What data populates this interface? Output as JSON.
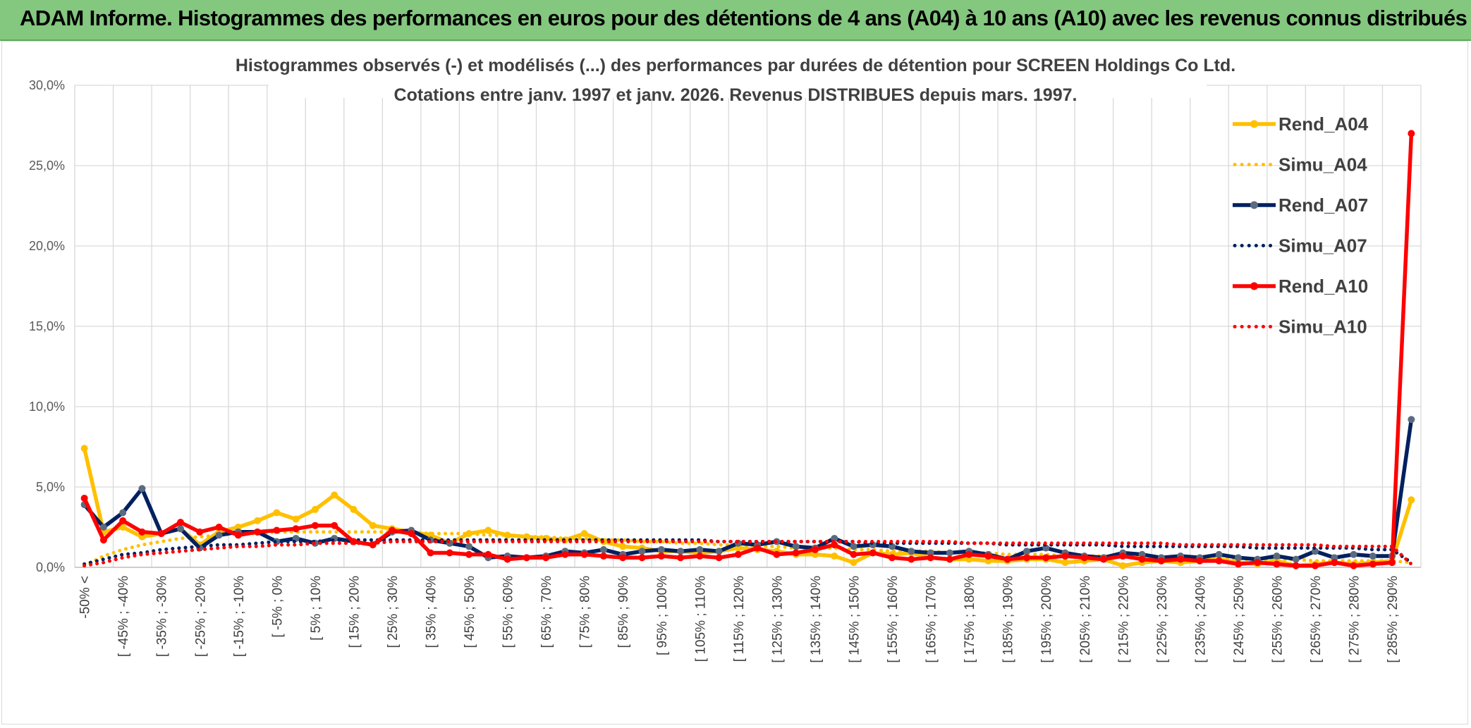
{
  "header": {
    "title": "ADAM Informe. Histogrammes des performances en euros pour des détentions de 4 ans (A04) à 10 ans (A10) avec les revenus connus distribués"
  },
  "chart_data": {
    "type": "line",
    "title": "Histogrammes observés (-) et modélisés (...) des performances par durées de détention pour SCREEN Holdings Co Ltd.",
    "subtitle": "Cotations entre janv. 1997 et janv. 2026.  Revenus DISTRIBUES depuis mars. 1997.",
    "xlabel": "",
    "ylabel": "",
    "ylim": [
      0,
      30
    ],
    "y_ticks": [
      "0,0%",
      "5,0%",
      "10,0%",
      "15,0%",
      "20,0%",
      "25,0%",
      "30,0%"
    ],
    "grid": true,
    "legend_position": "right",
    "categories": [
      "-50% <",
      "[ -50% ; -45%",
      "[ -45% ; -40%",
      "[ -40% ; -35%",
      "[ -35% ; -30%",
      "[ -30% ; -25%",
      "[ -25% ; -20%",
      "[ -20% ; -15%",
      "[ -15% ; -10%",
      "[ -10% ; -5%",
      "[ -5% ; 0%",
      "[ 0% ; 5%",
      "[ 5% ; 10%",
      "[ 10% ; 15%",
      "[ 15% ; 20%",
      "[ 20% ; 25%",
      "[ 25% ; 30%",
      "[ 30% ; 35%",
      "[ 35% ; 40%",
      "[ 40% ; 45%",
      "[ 45% ; 50%",
      "[ 50% ; 55%",
      "[ 55% ; 60%",
      "[ 60% ; 65%",
      "[ 65% ; 70%",
      "[ 70% ; 75%",
      "[ 75% ; 80%",
      "[ 80% ; 85%",
      "[ 85% ; 90%",
      "[ 90% ; 95%",
      "[ 95% ; 100%",
      "[ 100% ; 105%",
      "[ 105% ; 110%",
      "[ 110% ; 115%",
      "[ 115% ; 120%",
      "[ 120% ; 125%",
      "[ 125% ; 130%",
      "[ 130% ; 135%",
      "[ 135% ; 140%",
      "[ 140% ; 145%",
      "[ 145% ; 150%",
      "[ 150% ; 155%",
      "[ 155% ; 160%",
      "[ 160% ; 165%",
      "[ 165% ; 170%",
      "[ 170% ; 175%",
      "[ 175% ; 180%",
      "[ 180% ; 185%",
      "[ 185% ; 190%",
      "[ 190% ; 195%",
      "[ 195% ; 200%",
      "[ 200% ; 205%",
      "[ 205% ; 210%",
      "[ 210% ; 215%",
      "[ 215% ; 220%",
      "[ 220% ; 225%",
      "[ 225% ; 230%",
      "[ 230% ; 235%",
      "[ 235% ; 240%",
      "[ 240% ; 245%",
      "[ 245% ; 250%",
      "[ 250% ; 255%",
      "[ 255% ; 260%",
      "[ 260% ; 265%",
      "[ 265% ; 270%",
      "[ 270% ; 275%",
      "[ 275% ; 280%",
      "[ 280% ; 285%",
      "[ 285% ; 290%",
      "[ 290% ; 295%"
    ],
    "visible_tick_labels": [
      "-50% <",
      "[ -45% ; -40%",
      "[ -35% ; -30%",
      "[ -25% ; -20%",
      "[ -15% ; -10%",
      "[ -5% ; 0%",
      "[ 5% ; 10%",
      "[ 15% ; 20%",
      "[ 25% ; 30%",
      "[ 35% ; 40%",
      "[ 45% ; 50%",
      "[ 55% ; 60%",
      "[ 65% ; 70%",
      "[ 75% ; 80%",
      "[ 85% ; 90%",
      "[ 95% ; 100%",
      "[ 105% ; 110%",
      "[ 115% ; 120%",
      "[ 125% ; 130%",
      "[ 135% ; 140%",
      "[ 145% ; 150%",
      "[ 155% ; 160%",
      "[ 165% ; 170%",
      "[ 175% ; 180%",
      "[ 185% ; 190%",
      "[ 195% ; 200%",
      "[ 205% ; 210%",
      "[ 215% ; 220%",
      "[ 225% ; 230%",
      "[ 235% ; 240%",
      "[ 245% ; 250%",
      "[ 255% ; 260%",
      "[ 265% ; 270%",
      "[ 275% ; 280%",
      "[ 285% ; 290%"
    ],
    "series": [
      {
        "name": "Rend_A04",
        "style": "solid",
        "color": "#FFC000",
        "values": [
          7.4,
          2.2,
          2.5,
          1.9,
          2.1,
          2.4,
          1.4,
          2.2,
          2.5,
          2.9,
          3.4,
          3.0,
          3.6,
          4.5,
          3.6,
          2.6,
          2.4,
          2.2,
          2.0,
          1.5,
          2.1,
          2.3,
          2.0,
          1.9,
          1.8,
          1.7,
          2.1,
          1.6,
          1.3,
          1.2,
          1.0,
          1.0,
          0.9,
          1.0,
          1.2,
          1.1,
          1.0,
          0.8,
          0.8,
          0.7,
          0.3,
          0.9,
          0.8,
          0.9,
          0.6,
          0.5,
          0.5,
          0.4,
          0.4,
          0.5,
          0.5,
          0.3,
          0.4,
          0.5,
          0.1,
          0.3,
          0.4,
          0.3,
          0.4,
          0.5,
          0.3,
          0.2,
          0.4,
          0.1,
          0.2,
          0.3,
          0.2,
          0.3,
          0.4,
          4.2
        ]
      },
      {
        "name": "Simu_A04",
        "style": "dotted",
        "color": "#FFC000",
        "values": [
          0.1,
          0.7,
          1.1,
          1.4,
          1.6,
          1.8,
          1.9,
          2.0,
          2.1,
          2.1,
          2.2,
          2.2,
          2.2,
          2.2,
          2.2,
          2.2,
          2.2,
          2.2,
          2.1,
          2.1,
          2.1,
          2.0,
          2.0,
          1.9,
          1.9,
          1.8,
          1.8,
          1.7,
          1.7,
          1.6,
          1.6,
          1.5,
          1.5,
          1.4,
          1.4,
          1.3,
          1.3,
          1.2,
          1.2,
          1.2,
          1.1,
          1.1,
          1.0,
          1.0,
          1.0,
          0.9,
          0.9,
          0.9,
          0.8,
          0.8,
          0.8,
          0.7,
          0.7,
          0.7,
          0.7,
          0.6,
          0.6,
          0.6,
          0.6,
          0.5,
          0.5,
          0.5,
          0.5,
          0.5,
          0.4,
          0.4,
          0.4,
          0.4,
          0.4,
          0.3
        ]
      },
      {
        "name": "Rend_A07",
        "style": "solid",
        "color": "#002060",
        "values": [
          3.9,
          2.5,
          3.4,
          4.9,
          2.1,
          2.4,
          1.2,
          2.0,
          2.2,
          2.2,
          1.6,
          1.8,
          1.5,
          1.8,
          1.6,
          1.4,
          2.2,
          2.3,
          1.7,
          1.5,
          1.3,
          0.6,
          0.7,
          0.6,
          0.7,
          1.0,
          0.9,
          1.1,
          0.8,
          1.0,
          1.1,
          1.0,
          1.1,
          1.0,
          1.5,
          1.4,
          1.6,
          1.3,
          1.2,
          1.8,
          1.3,
          1.4,
          1.3,
          1.0,
          0.9,
          0.9,
          1.0,
          0.8,
          0.5,
          1.0,
          1.2,
          0.9,
          0.7,
          0.6,
          0.9,
          0.8,
          0.6,
          0.7,
          0.6,
          0.8,
          0.6,
          0.5,
          0.7,
          0.5,
          1.0,
          0.6,
          0.8,
          0.7,
          0.7,
          9.2
        ]
      },
      {
        "name": "Simu_A07",
        "style": "dotted",
        "color": "#002060",
        "values": [
          0.2,
          0.5,
          0.8,
          0.9,
          1.1,
          1.2,
          1.3,
          1.4,
          1.4,
          1.5,
          1.6,
          1.6,
          1.6,
          1.7,
          1.7,
          1.7,
          1.7,
          1.7,
          1.7,
          1.7,
          1.7,
          1.7,
          1.7,
          1.7,
          1.7,
          1.7,
          1.7,
          1.7,
          1.7,
          1.7,
          1.7,
          1.7,
          1.7,
          1.6,
          1.6,
          1.6,
          1.6,
          1.6,
          1.6,
          1.6,
          1.6,
          1.5,
          1.5,
          1.5,
          1.5,
          1.5,
          1.5,
          1.5,
          1.4,
          1.4,
          1.4,
          1.4,
          1.4,
          1.4,
          1.3,
          1.3,
          1.3,
          1.3,
          1.3,
          1.3,
          1.3,
          1.2,
          1.2,
          1.2,
          1.2,
          1.2,
          1.2,
          1.1,
          1.1,
          0.3
        ]
      },
      {
        "name": "Rend_A10",
        "style": "solid",
        "color": "#FF0000",
        "values": [
          4.3,
          1.7,
          2.9,
          2.2,
          2.1,
          2.8,
          2.2,
          2.5,
          2.0,
          2.2,
          2.3,
          2.4,
          2.6,
          2.6,
          1.6,
          1.4,
          2.3,
          2.1,
          0.9,
          0.9,
          0.8,
          0.8,
          0.5,
          0.6,
          0.6,
          0.8,
          0.8,
          0.7,
          0.6,
          0.6,
          0.7,
          0.6,
          0.7,
          0.6,
          0.8,
          1.2,
          0.8,
          0.9,
          1.1,
          1.4,
          0.8,
          0.9,
          0.6,
          0.5,
          0.6,
          0.5,
          0.8,
          0.7,
          0.5,
          0.6,
          0.6,
          0.7,
          0.6,
          0.5,
          0.7,
          0.5,
          0.4,
          0.5,
          0.4,
          0.4,
          0.2,
          0.3,
          0.2,
          0.1,
          0.1,
          0.3,
          0.1,
          0.2,
          0.3,
          27.0
        ]
      },
      {
        "name": "Simu_A10",
        "style": "dotted",
        "color": "#FF0000",
        "values": [
          0.1,
          0.3,
          0.6,
          0.8,
          0.9,
          1.0,
          1.1,
          1.2,
          1.3,
          1.3,
          1.4,
          1.4,
          1.5,
          1.5,
          1.5,
          1.5,
          1.6,
          1.6,
          1.6,
          1.6,
          1.6,
          1.6,
          1.6,
          1.6,
          1.6,
          1.6,
          1.6,
          1.6,
          1.6,
          1.6,
          1.6,
          1.6,
          1.6,
          1.6,
          1.6,
          1.6,
          1.6,
          1.6,
          1.6,
          1.6,
          1.6,
          1.6,
          1.6,
          1.6,
          1.6,
          1.6,
          1.5,
          1.5,
          1.5,
          1.5,
          1.5,
          1.5,
          1.5,
          1.5,
          1.5,
          1.5,
          1.5,
          1.4,
          1.4,
          1.4,
          1.4,
          1.4,
          1.4,
          1.4,
          1.4,
          1.3,
          1.3,
          1.3,
          1.3,
          0.2
        ]
      }
    ]
  }
}
